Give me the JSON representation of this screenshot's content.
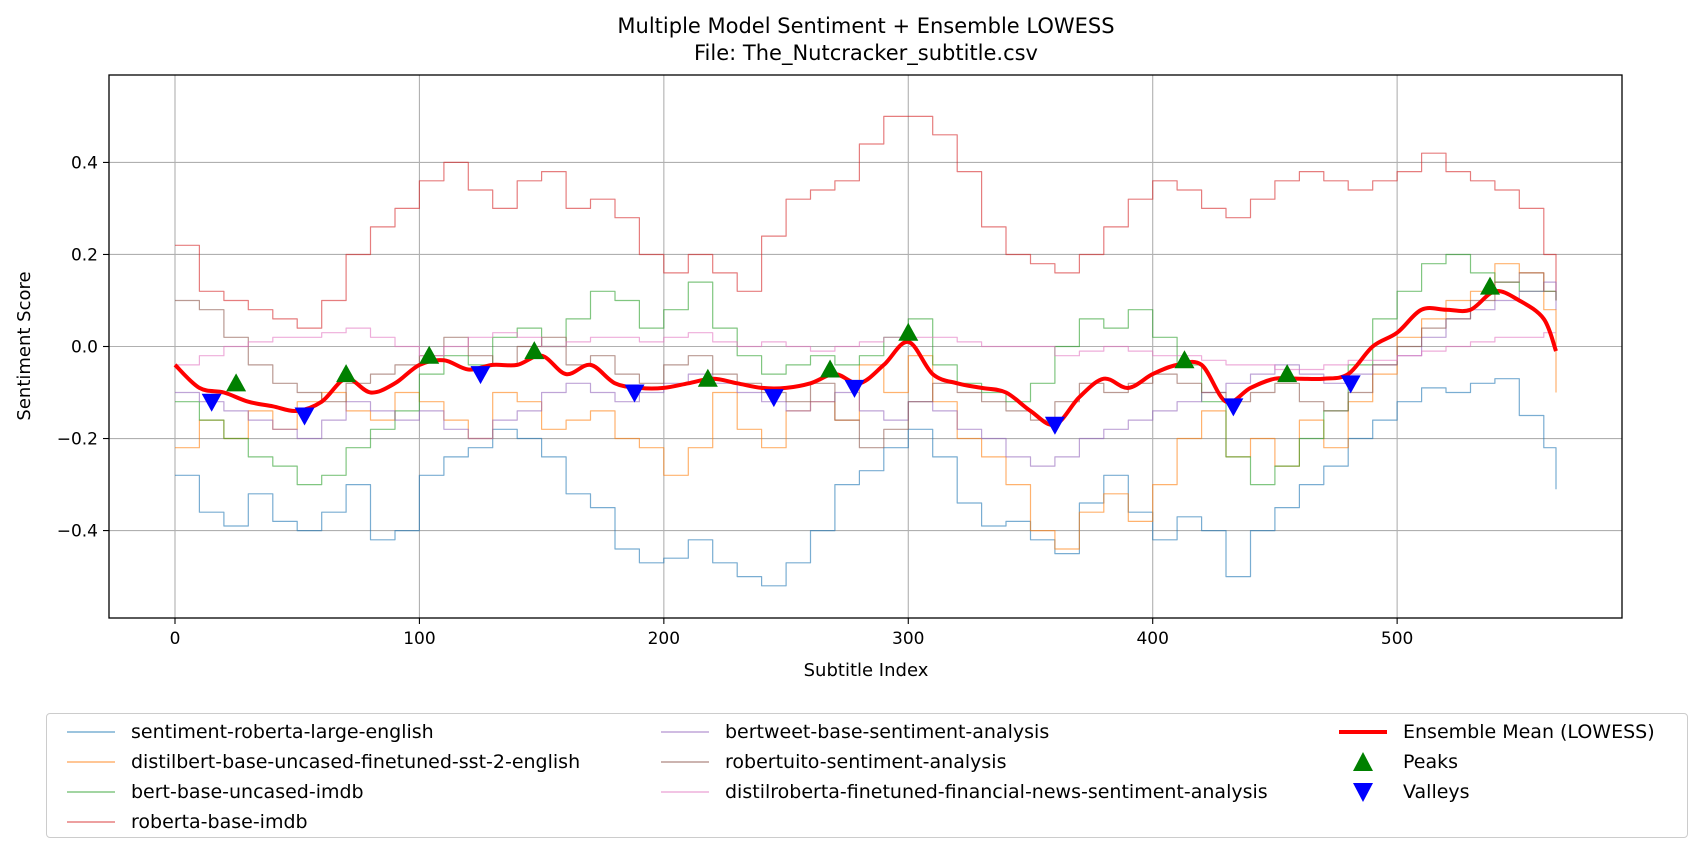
{
  "chart_data": {
    "type": "line",
    "title": "Multiple Model Sentiment + Ensemble LOWESS",
    "subtitle": "File: The_Nutcracker_subtitle.csv",
    "xlabel": "Subtitle Index",
    "ylabel": "Sentiment Score",
    "xlim": [
      -27,
      592
    ],
    "ylim": [
      -0.59,
      0.59
    ],
    "xticks": [
      0,
      100,
      200,
      300,
      400,
      500
    ],
    "yticks": [
      -0.4,
      -0.2,
      0.0,
      0.2,
      0.4
    ],
    "xtick_labels": [
      "0",
      "100",
      "200",
      "300",
      "400",
      "500"
    ],
    "ytick_labels": [
      "−0.4",
      "−0.2",
      "0.0",
      "0.2",
      "0.4"
    ],
    "grid": true,
    "legend_position": "below",
    "series": [
      {
        "name": "sentiment-roberta-large-english",
        "color": "#1f77b4",
        "x": [
          0,
          10,
          20,
          30,
          40,
          50,
          60,
          70,
          80,
          90,
          100,
          110,
          120,
          130,
          140,
          150,
          160,
          170,
          180,
          190,
          200,
          210,
          220,
          230,
          240,
          250,
          260,
          270,
          280,
          290,
          300,
          310,
          320,
          330,
          340,
          350,
          360,
          370,
          380,
          390,
          400,
          410,
          420,
          430,
          440,
          450,
          460,
          470,
          480,
          490,
          500,
          510,
          520,
          530,
          540,
          550,
          560,
          565
        ],
        "y": [
          -0.28,
          -0.36,
          -0.39,
          -0.32,
          -0.38,
          -0.4,
          -0.36,
          -0.3,
          -0.42,
          -0.4,
          -0.28,
          -0.24,
          -0.22,
          -0.18,
          -0.2,
          -0.24,
          -0.32,
          -0.35,
          -0.44,
          -0.47,
          -0.46,
          -0.42,
          -0.47,
          -0.5,
          -0.52,
          -0.47,
          -0.4,
          -0.3,
          -0.27,
          -0.22,
          -0.18,
          -0.24,
          -0.34,
          -0.39,
          -0.38,
          -0.42,
          -0.45,
          -0.34,
          -0.28,
          -0.36,
          -0.42,
          -0.37,
          -0.4,
          -0.5,
          -0.4,
          -0.35,
          -0.3,
          -0.26,
          -0.2,
          -0.16,
          -0.12,
          -0.09,
          -0.1,
          -0.08,
          -0.07,
          -0.15,
          -0.22,
          -0.31
        ]
      },
      {
        "name": "distilbert-base-uncased-finetuned-sst-2-english",
        "color": "#ff7f0e",
        "x": [
          0,
          10,
          20,
          30,
          40,
          50,
          60,
          70,
          80,
          90,
          100,
          110,
          120,
          130,
          140,
          150,
          160,
          170,
          180,
          190,
          200,
          210,
          220,
          230,
          240,
          250,
          260,
          270,
          280,
          290,
          300,
          310,
          320,
          330,
          340,
          350,
          360,
          370,
          380,
          390,
          400,
          410,
          420,
          430,
          440,
          450,
          460,
          470,
          480,
          490,
          500,
          510,
          520,
          530,
          540,
          550,
          560,
          565
        ],
        "y": [
          -0.22,
          -0.16,
          -0.2,
          -0.14,
          -0.18,
          -0.12,
          -0.1,
          -0.14,
          -0.16,
          -0.1,
          -0.12,
          -0.16,
          -0.2,
          -0.1,
          -0.12,
          -0.18,
          -0.16,
          -0.14,
          -0.2,
          -0.22,
          -0.28,
          -0.22,
          -0.1,
          -0.18,
          -0.22,
          -0.14,
          -0.12,
          -0.16,
          -0.04,
          -0.1,
          -0.02,
          -0.12,
          -0.2,
          -0.24,
          -0.3,
          -0.4,
          -0.44,
          -0.36,
          -0.32,
          -0.38,
          -0.3,
          -0.2,
          -0.14,
          -0.24,
          -0.2,
          -0.26,
          -0.16,
          -0.22,
          -0.12,
          -0.06,
          0.02,
          0.06,
          0.1,
          0.12,
          0.18,
          0.16,
          0.08,
          -0.1
        ]
      },
      {
        "name": "bert-base-uncased-imdb",
        "color": "#2ca02c",
        "x": [
          0,
          10,
          20,
          30,
          40,
          50,
          60,
          70,
          80,
          90,
          100,
          110,
          120,
          130,
          140,
          150,
          160,
          170,
          180,
          190,
          200,
          210,
          220,
          230,
          240,
          250,
          260,
          270,
          280,
          290,
          300,
          310,
          320,
          330,
          340,
          350,
          360,
          370,
          380,
          390,
          400,
          410,
          420,
          430,
          440,
          450,
          460,
          470,
          480,
          490,
          500,
          510,
          520,
          530,
          540,
          550,
          560,
          565
        ],
        "y": [
          -0.12,
          -0.16,
          -0.2,
          -0.24,
          -0.26,
          -0.3,
          -0.28,
          -0.22,
          -0.18,
          -0.14,
          -0.06,
          -0.02,
          -0.04,
          0.02,
          0.04,
          0.0,
          0.06,
          0.12,
          0.1,
          0.04,
          0.08,
          0.14,
          0.04,
          -0.02,
          -0.06,
          -0.04,
          -0.02,
          -0.04,
          -0.02,
          0.02,
          0.06,
          -0.04,
          -0.08,
          -0.1,
          -0.12,
          -0.08,
          0.0,
          0.06,
          0.04,
          0.08,
          0.02,
          -0.04,
          -0.12,
          -0.24,
          -0.3,
          -0.26,
          -0.2,
          -0.14,
          -0.04,
          0.06,
          0.12,
          0.18,
          0.2,
          0.16,
          0.14,
          0.12,
          0.12,
          0.1
        ]
      },
      {
        "name": "roberta-base-imdb",
        "color": "#d62728",
        "x": [
          0,
          10,
          20,
          30,
          40,
          50,
          60,
          70,
          80,
          90,
          100,
          110,
          120,
          130,
          140,
          150,
          160,
          170,
          180,
          190,
          200,
          210,
          220,
          230,
          240,
          250,
          260,
          270,
          280,
          290,
          300,
          310,
          320,
          330,
          340,
          350,
          360,
          370,
          380,
          390,
          400,
          410,
          420,
          430,
          440,
          450,
          460,
          470,
          480,
          490,
          500,
          510,
          520,
          530,
          540,
          550,
          560,
          565
        ],
        "y": [
          0.22,
          0.12,
          0.1,
          0.08,
          0.06,
          0.04,
          0.1,
          0.2,
          0.26,
          0.3,
          0.36,
          0.4,
          0.34,
          0.3,
          0.36,
          0.38,
          0.3,
          0.32,
          0.28,
          0.2,
          0.16,
          0.2,
          0.16,
          0.12,
          0.24,
          0.32,
          0.34,
          0.36,
          0.44,
          0.5,
          0.5,
          0.46,
          0.38,
          0.26,
          0.2,
          0.18,
          0.16,
          0.2,
          0.26,
          0.32,
          0.36,
          0.34,
          0.3,
          0.28,
          0.32,
          0.36,
          0.38,
          0.36,
          0.34,
          0.36,
          0.38,
          0.42,
          0.38,
          0.36,
          0.34,
          0.3,
          0.2,
          0.12
        ]
      },
      {
        "name": "bertweet-base-sentiment-analysis",
        "color": "#9467bd",
        "x": [
          0,
          10,
          20,
          30,
          40,
          50,
          60,
          70,
          80,
          90,
          100,
          110,
          120,
          130,
          140,
          150,
          160,
          170,
          180,
          190,
          200,
          210,
          220,
          230,
          240,
          250,
          260,
          270,
          280,
          290,
          300,
          310,
          320,
          330,
          340,
          350,
          360,
          370,
          380,
          390,
          400,
          410,
          420,
          430,
          440,
          450,
          460,
          470,
          480,
          490,
          500,
          510,
          520,
          530,
          540,
          550,
          560,
          565
        ],
        "y": [
          -0.1,
          -0.12,
          -0.14,
          -0.16,
          -0.18,
          -0.2,
          -0.16,
          -0.12,
          -0.14,
          -0.16,
          -0.14,
          -0.18,
          -0.2,
          -0.16,
          -0.14,
          -0.1,
          -0.08,
          -0.1,
          -0.12,
          -0.1,
          -0.08,
          -0.06,
          -0.08,
          -0.1,
          -0.12,
          -0.14,
          -0.12,
          -0.1,
          -0.14,
          -0.16,
          -0.12,
          -0.14,
          -0.18,
          -0.2,
          -0.24,
          -0.26,
          -0.24,
          -0.2,
          -0.18,
          -0.16,
          -0.14,
          -0.12,
          -0.1,
          -0.08,
          -0.06,
          -0.04,
          -0.06,
          -0.08,
          -0.06,
          -0.04,
          -0.02,
          0.02,
          0.06,
          0.08,
          0.1,
          0.12,
          0.14,
          0.08
        ]
      },
      {
        "name": "robertuito-sentiment-analysis",
        "color": "#8c564b",
        "x": [
          0,
          10,
          20,
          30,
          40,
          50,
          60,
          70,
          80,
          90,
          100,
          110,
          120,
          130,
          140,
          150,
          160,
          170,
          180,
          190,
          200,
          210,
          220,
          230,
          240,
          250,
          260,
          270,
          280,
          290,
          300,
          310,
          320,
          330,
          340,
          350,
          360,
          370,
          380,
          390,
          400,
          410,
          420,
          430,
          440,
          450,
          460,
          470,
          480,
          490,
          500,
          510,
          520,
          530,
          540,
          550,
          560,
          565
        ],
        "y": [
          0.1,
          0.08,
          0.02,
          -0.04,
          -0.08,
          -0.1,
          -0.12,
          -0.08,
          -0.06,
          -0.04,
          -0.02,
          0.02,
          -0.02,
          -0.04,
          0.0,
          0.02,
          -0.04,
          -0.02,
          -0.06,
          -0.08,
          -0.04,
          -0.02,
          -0.06,
          -0.08,
          -0.1,
          -0.12,
          -0.08,
          -0.16,
          -0.22,
          -0.18,
          -0.12,
          -0.08,
          -0.1,
          -0.12,
          -0.14,
          -0.16,
          -0.12,
          -0.08,
          -0.1,
          -0.08,
          -0.06,
          -0.08,
          -0.1,
          -0.12,
          -0.1,
          -0.08,
          -0.12,
          -0.14,
          -0.1,
          -0.04,
          0.0,
          0.04,
          0.06,
          0.1,
          0.14,
          0.16,
          0.12,
          0.1
        ]
      },
      {
        "name": "distilroberta-finetuned-financial-news-sentiment-analysis",
        "color": "#e377c2",
        "x": [
          0,
          10,
          20,
          30,
          40,
          50,
          60,
          70,
          80,
          90,
          100,
          110,
          120,
          130,
          140,
          150,
          160,
          170,
          180,
          190,
          200,
          210,
          220,
          230,
          240,
          250,
          260,
          270,
          280,
          290,
          300,
          310,
          320,
          330,
          340,
          350,
          360,
          370,
          380,
          390,
          400,
          410,
          420,
          430,
          440,
          450,
          460,
          470,
          480,
          490,
          500,
          510,
          520,
          530,
          540,
          550,
          560,
          565
        ],
        "y": [
          -0.04,
          -0.02,
          0.0,
          0.01,
          0.02,
          0.02,
          0.03,
          0.04,
          0.02,
          0.0,
          -0.02,
          0.0,
          0.02,
          0.03,
          0.02,
          0.0,
          0.01,
          0.02,
          0.02,
          0.01,
          0.02,
          0.03,
          0.01,
          0.0,
          0.01,
          0.0,
          -0.01,
          0.0,
          0.01,
          0.02,
          0.02,
          0.02,
          0.01,
          0.0,
          0.0,
          0.0,
          -0.02,
          -0.01,
          0.0,
          -0.01,
          -0.02,
          -0.02,
          -0.03,
          -0.04,
          -0.04,
          -0.05,
          -0.05,
          -0.04,
          -0.03,
          -0.03,
          -0.02,
          -0.01,
          0.0,
          0.01,
          0.02,
          0.02,
          0.03,
          0.03
        ]
      },
      {
        "name": "Ensemble Mean (LOWESS)",
        "color": "#ff0000",
        "role": "ensemble",
        "x": [
          0,
          10,
          20,
          30,
          40,
          50,
          60,
          70,
          80,
          90,
          100,
          110,
          120,
          130,
          140,
          150,
          160,
          170,
          180,
          190,
          200,
          210,
          220,
          230,
          240,
          250,
          260,
          270,
          280,
          290,
          300,
          310,
          320,
          330,
          340,
          350,
          360,
          370,
          380,
          390,
          400,
          410,
          420,
          430,
          440,
          450,
          460,
          470,
          480,
          490,
          500,
          510,
          520,
          530,
          540,
          550,
          560,
          565
        ],
        "y": [
          -0.04,
          -0.09,
          -0.1,
          -0.12,
          -0.13,
          -0.14,
          -0.12,
          -0.07,
          -0.1,
          -0.08,
          -0.04,
          -0.03,
          -0.05,
          -0.04,
          -0.04,
          -0.02,
          -0.06,
          -0.04,
          -0.08,
          -0.09,
          -0.09,
          -0.08,
          -0.07,
          -0.08,
          -0.09,
          -0.09,
          -0.08,
          -0.06,
          -0.08,
          -0.04,
          0.01,
          -0.06,
          -0.08,
          -0.09,
          -0.1,
          -0.14,
          -0.17,
          -0.11,
          -0.07,
          -0.09,
          -0.06,
          -0.04,
          -0.04,
          -0.12,
          -0.09,
          -0.07,
          -0.07,
          -0.07,
          -0.06,
          0.0,
          0.03,
          0.08,
          0.08,
          0.08,
          0.12,
          0.1,
          0.06,
          -0.01
        ]
      }
    ],
    "peaks": {
      "name": "Peaks",
      "color": "#008000",
      "x": [
        25,
        70,
        104,
        147,
        218,
        268,
        300,
        413,
        455,
        538
      ],
      "y": [
        -0.08,
        -0.06,
        -0.02,
        -0.01,
        -0.07,
        -0.05,
        0.03,
        -0.03,
        -0.06,
        0.13
      ]
    },
    "valleys": {
      "name": "Valleys",
      "color": "#0000ff",
      "x": [
        15,
        53,
        125,
        188,
        245,
        278,
        360,
        433,
        481
      ],
      "y": [
        -0.12,
        -0.15,
        -0.06,
        -0.1,
        -0.11,
        -0.09,
        -0.17,
        -0.13,
        -0.08
      ]
    },
    "legend_entries": [
      "sentiment-roberta-large-english",
      "distilbert-base-uncased-finetuned-sst-2-english",
      "bert-base-uncased-imdb",
      "roberta-base-imdb",
      "bertweet-base-sentiment-analysis",
      "robertuito-sentiment-analysis",
      "distilroberta-finetuned-financial-news-sentiment-analysis",
      "Ensemble Mean (LOWESS)",
      "Peaks",
      "Valleys"
    ]
  }
}
